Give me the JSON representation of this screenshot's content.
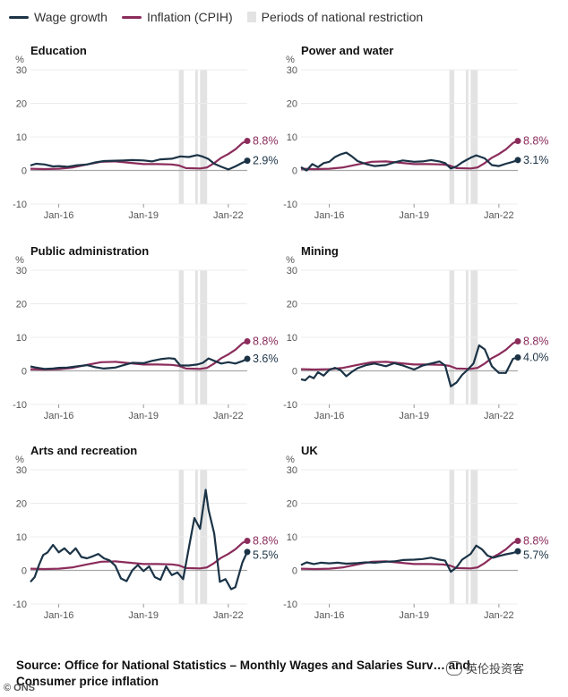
{
  "legend": {
    "wage": "Wage growth",
    "inflation": "Inflation (CPIH)",
    "restriction": "Periods of national restriction"
  },
  "colors": {
    "wage": "#1b3346",
    "inflation": "#8b2c5b",
    "restriction": "#e3e3e3",
    "axis": "#bdbdbd"
  },
  "source": "Source: Office for National Statistics – Monthly Wages and Salaries Surv… and Consumer price inflation",
  "ons_logo": "© ONS",
  "watermark": "英伦投资客",
  "chart_data": {
    "type": "line",
    "unit": "%",
    "x_range": [
      2015.0,
      2022.67
    ],
    "ylim": [
      -10,
      30
    ],
    "yticks": [
      -10,
      0,
      10,
      20,
      30
    ],
    "xticks": [
      {
        "value": 2016.0,
        "label": "Jan-16"
      },
      {
        "value": 2019.0,
        "label": "Jan-19"
      },
      {
        "value": 2022.0,
        "label": "Jan-22"
      }
    ],
    "restriction_periods": [
      [
        2020.25,
        2020.42
      ],
      [
        2020.83,
        2020.92
      ],
      [
        2021.0,
        2021.25
      ]
    ],
    "inflation": {
      "name": "Inflation (CPIH)",
      "points": [
        [
          2015.0,
          0.5
        ],
        [
          2015.5,
          0.4
        ],
        [
          2016.0,
          0.5
        ],
        [
          2016.5,
          0.9
        ],
        [
          2017.0,
          1.8
        ],
        [
          2017.5,
          2.6
        ],
        [
          2018.0,
          2.7
        ],
        [
          2018.5,
          2.3
        ],
        [
          2019.0,
          1.9
        ],
        [
          2019.5,
          1.9
        ],
        [
          2020.0,
          1.8
        ],
        [
          2020.25,
          1.5
        ],
        [
          2020.5,
          0.7
        ],
        [
          2021.0,
          0.6
        ],
        [
          2021.25,
          0.9
        ],
        [
          2021.5,
          2.2
        ],
        [
          2021.75,
          3.8
        ],
        [
          2022.0,
          4.9
        ],
        [
          2022.25,
          6.3
        ],
        [
          2022.5,
          8.2
        ],
        [
          2022.67,
          8.8
        ]
      ],
      "end_label": "8.8%"
    },
    "panels": [
      {
        "title": "Education",
        "wage_end_label": "2.9%",
        "wage": [
          [
            2015.0,
            1.5
          ],
          [
            2015.2,
            2.0
          ],
          [
            2015.5,
            1.8
          ],
          [
            2015.8,
            1.2
          ],
          [
            2016.0,
            1.3
          ],
          [
            2016.3,
            1.1
          ],
          [
            2016.6,
            1.5
          ],
          [
            2017.0,
            1.8
          ],
          [
            2017.3,
            2.4
          ],
          [
            2017.6,
            2.8
          ],
          [
            2018.0,
            2.9
          ],
          [
            2018.3,
            3.0
          ],
          [
            2018.6,
            3.1
          ],
          [
            2019.0,
            3.0
          ],
          [
            2019.3,
            2.7
          ],
          [
            2019.6,
            3.3
          ],
          [
            2020.0,
            3.5
          ],
          [
            2020.3,
            4.2
          ],
          [
            2020.6,
            4.0
          ],
          [
            2020.9,
            4.6
          ],
          [
            2021.1,
            4.1
          ],
          [
            2021.3,
            3.4
          ],
          [
            2021.5,
            2.0
          ],
          [
            2021.75,
            1.1
          ],
          [
            2022.0,
            0.3
          ],
          [
            2022.25,
            1.2
          ],
          [
            2022.5,
            2.3
          ],
          [
            2022.67,
            2.9
          ]
        ]
      },
      {
        "title": "Power and water",
        "wage_end_label": "3.1%",
        "wage": [
          [
            2015.0,
            1.0
          ],
          [
            2015.2,
            0.0
          ],
          [
            2015.4,
            1.9
          ],
          [
            2015.6,
            1.0
          ],
          [
            2015.8,
            2.2
          ],
          [
            2016.0,
            2.6
          ],
          [
            2016.2,
            4.0
          ],
          [
            2016.4,
            4.8
          ],
          [
            2016.6,
            5.3
          ],
          [
            2016.8,
            4.2
          ],
          [
            2017.0,
            2.8
          ],
          [
            2017.3,
            1.9
          ],
          [
            2017.6,
            1.3
          ],
          [
            2018.0,
            1.6
          ],
          [
            2018.3,
            2.4
          ],
          [
            2018.6,
            3.0
          ],
          [
            2019.0,
            2.6
          ],
          [
            2019.3,
            2.7
          ],
          [
            2019.6,
            3.1
          ],
          [
            2019.9,
            2.7
          ],
          [
            2020.1,
            2.2
          ],
          [
            2020.3,
            0.6
          ],
          [
            2020.5,
            1.2
          ],
          [
            2020.7,
            2.4
          ],
          [
            2021.0,
            3.8
          ],
          [
            2021.2,
            4.5
          ],
          [
            2021.5,
            3.6
          ],
          [
            2021.75,
            1.6
          ],
          [
            2022.0,
            1.3
          ],
          [
            2022.25,
            2.0
          ],
          [
            2022.5,
            2.6
          ],
          [
            2022.67,
            3.1
          ]
        ]
      },
      {
        "title": "Public administration",
        "wage_end_label": "3.6%",
        "wage": [
          [
            2015.0,
            1.3
          ],
          [
            2015.2,
            1.0
          ],
          [
            2015.5,
            0.6
          ],
          [
            2015.8,
            0.7
          ],
          [
            2016.0,
            0.9
          ],
          [
            2016.3,
            1.0
          ],
          [
            2016.6,
            1.3
          ],
          [
            2017.0,
            1.7
          ],
          [
            2017.3,
            1.1
          ],
          [
            2017.6,
            0.7
          ],
          [
            2018.0,
            1.0
          ],
          [
            2018.3,
            1.7
          ],
          [
            2018.6,
            2.4
          ],
          [
            2019.0,
            2.3
          ],
          [
            2019.3,
            3.0
          ],
          [
            2019.6,
            3.5
          ],
          [
            2019.9,
            3.8
          ],
          [
            2020.1,
            3.6
          ],
          [
            2020.3,
            1.6
          ],
          [
            2020.6,
            1.6
          ],
          [
            2020.9,
            1.9
          ],
          [
            2021.1,
            2.4
          ],
          [
            2021.3,
            3.7
          ],
          [
            2021.5,
            3.0
          ],
          [
            2021.75,
            2.2
          ],
          [
            2022.0,
            2.6
          ],
          [
            2022.25,
            2.2
          ],
          [
            2022.5,
            2.9
          ],
          [
            2022.67,
            3.6
          ]
        ]
      },
      {
        "title": "Mining",
        "wage_end_label": "4.0%",
        "wage": [
          [
            2015.0,
            -2.5
          ],
          [
            2015.15,
            -2.8
          ],
          [
            2015.3,
            -1.6
          ],
          [
            2015.45,
            -2.2
          ],
          [
            2015.6,
            -0.4
          ],
          [
            2015.8,
            -1.4
          ],
          [
            2016.0,
            0.3
          ],
          [
            2016.2,
            0.9
          ],
          [
            2016.4,
            0.2
          ],
          [
            2016.6,
            -1.6
          ],
          [
            2016.8,
            -0.3
          ],
          [
            2017.0,
            0.8
          ],
          [
            2017.3,
            1.7
          ],
          [
            2017.6,
            2.2
          ],
          [
            2018.0,
            1.4
          ],
          [
            2018.3,
            2.3
          ],
          [
            2018.6,
            1.6
          ],
          [
            2019.0,
            0.4
          ],
          [
            2019.3,
            1.6
          ],
          [
            2019.6,
            2.2
          ],
          [
            2019.9,
            2.8
          ],
          [
            2020.1,
            1.6
          ],
          [
            2020.3,
            -4.6
          ],
          [
            2020.5,
            -3.5
          ],
          [
            2020.7,
            -1.2
          ],
          [
            2020.9,
            0.4
          ],
          [
            2021.1,
            2.2
          ],
          [
            2021.3,
            7.6
          ],
          [
            2021.5,
            6.4
          ],
          [
            2021.75,
            1.4
          ],
          [
            2022.0,
            -0.6
          ],
          [
            2022.25,
            -0.6
          ],
          [
            2022.5,
            3.6
          ],
          [
            2022.67,
            4.0
          ]
        ]
      },
      {
        "title": "Arts and recreation",
        "wage_end_label": "5.5%",
        "wage": [
          [
            2015.0,
            -3.4
          ],
          [
            2015.15,
            -2.0
          ],
          [
            2015.3,
            1.6
          ],
          [
            2015.45,
            4.6
          ],
          [
            2015.6,
            5.3
          ],
          [
            2015.8,
            7.6
          ],
          [
            2016.0,
            5.4
          ],
          [
            2016.2,
            6.6
          ],
          [
            2016.4,
            4.9
          ],
          [
            2016.6,
            6.6
          ],
          [
            2016.8,
            4.0
          ],
          [
            2017.0,
            3.6
          ],
          [
            2017.2,
            4.2
          ],
          [
            2017.4,
            4.9
          ],
          [
            2017.6,
            3.6
          ],
          [
            2017.8,
            3.0
          ],
          [
            2018.0,
            1.4
          ],
          [
            2018.2,
            -2.4
          ],
          [
            2018.4,
            -3.2
          ],
          [
            2018.6,
            0.0
          ],
          [
            2018.8,
            1.6
          ],
          [
            2019.0,
            -0.2
          ],
          [
            2019.2,
            1.2
          ],
          [
            2019.4,
            -2.0
          ],
          [
            2019.6,
            -2.8
          ],
          [
            2019.8,
            1.2
          ],
          [
            2020.0,
            -1.4
          ],
          [
            2020.2,
            -0.6
          ],
          [
            2020.4,
            -2.6
          ],
          [
            2020.6,
            6.6
          ],
          [
            2020.8,
            15.6
          ],
          [
            2021.0,
            12.4
          ],
          [
            2021.2,
            24.0
          ],
          [
            2021.3,
            18.0
          ],
          [
            2021.5,
            11.0
          ],
          [
            2021.7,
            -3.4
          ],
          [
            2021.9,
            -2.6
          ],
          [
            2022.1,
            -5.6
          ],
          [
            2022.25,
            -5.0
          ],
          [
            2022.5,
            2.4
          ],
          [
            2022.67,
            5.5
          ]
        ]
      },
      {
        "title": "UK",
        "wage_end_label": "5.7%",
        "wage": [
          [
            2015.0,
            1.6
          ],
          [
            2015.2,
            2.4
          ],
          [
            2015.45,
            1.9
          ],
          [
            2015.7,
            2.3
          ],
          [
            2016.0,
            2.1
          ],
          [
            2016.3,
            2.3
          ],
          [
            2016.6,
            2.0
          ],
          [
            2017.0,
            2.2
          ],
          [
            2017.3,
            2.4
          ],
          [
            2017.6,
            2.3
          ],
          [
            2018.0,
            2.6
          ],
          [
            2018.3,
            2.7
          ],
          [
            2018.6,
            3.1
          ],
          [
            2019.0,
            3.2
          ],
          [
            2019.3,
            3.4
          ],
          [
            2019.6,
            3.8
          ],
          [
            2019.9,
            3.2
          ],
          [
            2020.1,
            2.9
          ],
          [
            2020.3,
            -0.4
          ],
          [
            2020.5,
            0.9
          ],
          [
            2020.7,
            3.2
          ],
          [
            2021.0,
            4.9
          ],
          [
            2021.2,
            7.4
          ],
          [
            2021.4,
            6.3
          ],
          [
            2021.6,
            4.4
          ],
          [
            2021.8,
            3.8
          ],
          [
            2022.0,
            4.3
          ],
          [
            2022.25,
            4.8
          ],
          [
            2022.5,
            5.2
          ],
          [
            2022.67,
            5.7
          ]
        ]
      }
    ]
  }
}
